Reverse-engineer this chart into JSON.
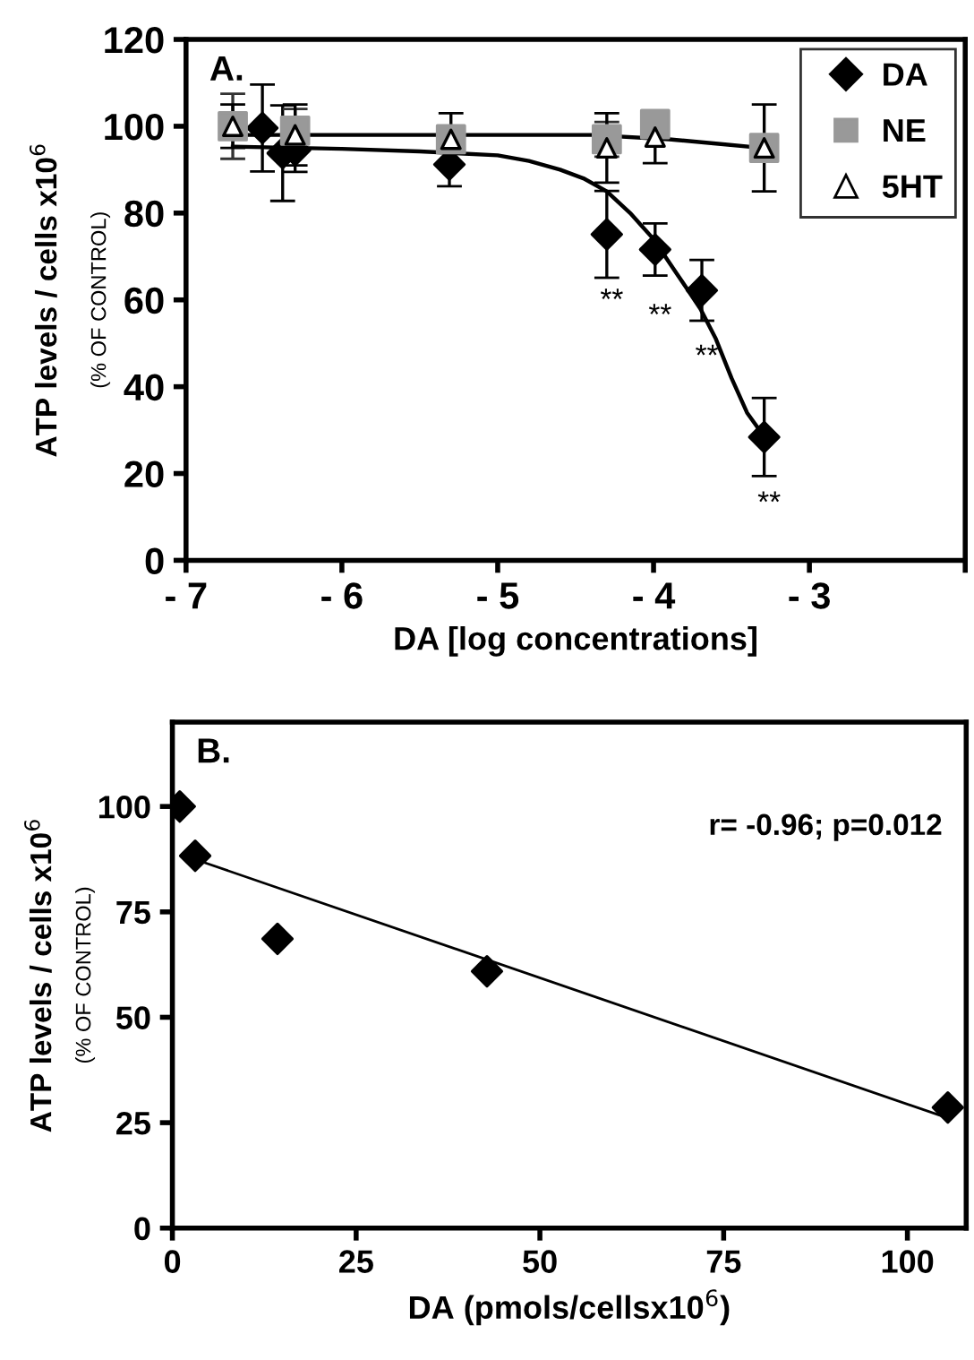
{
  "chart_data": [
    {
      "type": "scatter",
      "xlabel": "DA [log concentrations]",
      "ylabel": "ATP levels / cells x10$^{6}$\n(% OF CONTROL)",
      "annotations": [
        "A.",
        {
          "text": "**",
          "x": -4.3,
          "y": 75.1
        },
        {
          "text": "**",
          "x": -3.99,
          "y": 71.6
        },
        {
          "text": "**",
          "x": -3.69,
          "y": 62.2
        },
        {
          "text": "**",
          "x": -3.29,
          "y": 28.4
        }
      ],
      "xlim": [
        -7,
        -2
      ],
      "xticks": [
        {
          "value": -7,
          "label": "- 7"
        },
        {
          "value": -6,
          "label": "- 6"
        },
        {
          "value": -5,
          "label": "- 5"
        },
        {
          "value": -4,
          "label": "- 4"
        },
        {
          "value": -3,
          "label": "- 3"
        },
        {
          "value": -2,
          "label": null
        }
      ],
      "ylim": [
        0,
        120
      ],
      "yticks": [
        0,
        20,
        40,
        60,
        80,
        100,
        120
      ],
      "grid": false,
      "legend": "top right",
      "series": [
        {
          "type": "line",
          "color": "#000000",
          "x": [
            -6.7,
            -6.0,
            -5.5,
            -5.0,
            -4.8,
            -4.6,
            -4.45,
            -4.3,
            -4.15,
            -4.0,
            -3.85,
            -3.7,
            -3.6,
            -3.5,
            -3.4,
            -3.3
          ],
          "values": [
            95.3,
            94.8,
            94.2,
            93.3,
            92,
            90,
            88,
            85,
            80,
            74,
            66,
            58,
            51,
            42,
            34,
            29
          ]
        },
        {
          "type": "line",
          "color": "#000000",
          "x": [
            -6.7,
            -4.4,
            -3.9,
            -3.6,
            -3.3
          ],
          "values": [
            98,
            98,
            97,
            96,
            95
          ]
        },
        {
          "name": "DA",
          "color": "#000000",
          "marker": "diamond",
          "x": [
            -6.51,
            -6.38,
            -6.3,
            -5.31,
            -4.3,
            -3.99,
            -3.69,
            -3.29
          ],
          "values": [
            99.6,
            93.8,
            94.5,
            91.2,
            75.1,
            71.6,
            62.2,
            28.4
          ],
          "errors": [
            10,
            11,
            5,
            5,
            10,
            6,
            7,
            9
          ]
        },
        {
          "name": "NE",
          "color": "#999999",
          "marker": "square",
          "x": [
            -6.7,
            -6.3,
            -5.3,
            -4.3,
            -3.99,
            -3.29
          ],
          "values": [
            100,
            99,
            97,
            97,
            100.5,
            95
          ],
          "errors": [
            7.5,
            5,
            3,
            4,
            3,
            3
          ]
        },
        {
          "name": "5HT",
          "color": "#ffffff",
          "marker": "triangle",
          "x": [
            -6.7,
            -6.3,
            -5.3,
            -4.3,
            -3.99,
            -3.29
          ],
          "values": [
            100,
            98,
            97,
            95,
            97.5,
            95
          ],
          "errors": [
            5,
            7,
            6,
            8,
            6,
            10
          ]
        }
      ]
    },
    {
      "type": "scatter",
      "xlabel": "DA (pmols/cellsx10$^{6}$)",
      "ylabel": "ATP levels / cells x10$^{6}$\n(% OF CONTROL)",
      "annotations": [
        "B.",
        "r= -0.96; p=0.012"
      ],
      "xlim": [
        0,
        108
      ],
      "xticks": [
        0,
        25,
        50,
        75,
        100
      ],
      "ylim": [
        0,
        120
      ],
      "yticks": [
        0,
        25,
        50,
        75,
        100
      ],
      "grid": false,
      "series": [
        {
          "type": "line",
          "color": "#000000",
          "x": [
            3,
            105.5
          ],
          "values": [
            87.5,
            26.1
          ]
        },
        {
          "color": "#000000",
          "marker": "diamond",
          "x": [
            1.0,
            3.1,
            14.3,
            42.8,
            105.5
          ],
          "values": [
            100,
            88.3,
            68.6,
            60.9,
            28.6
          ]
        }
      ]
    }
  ]
}
